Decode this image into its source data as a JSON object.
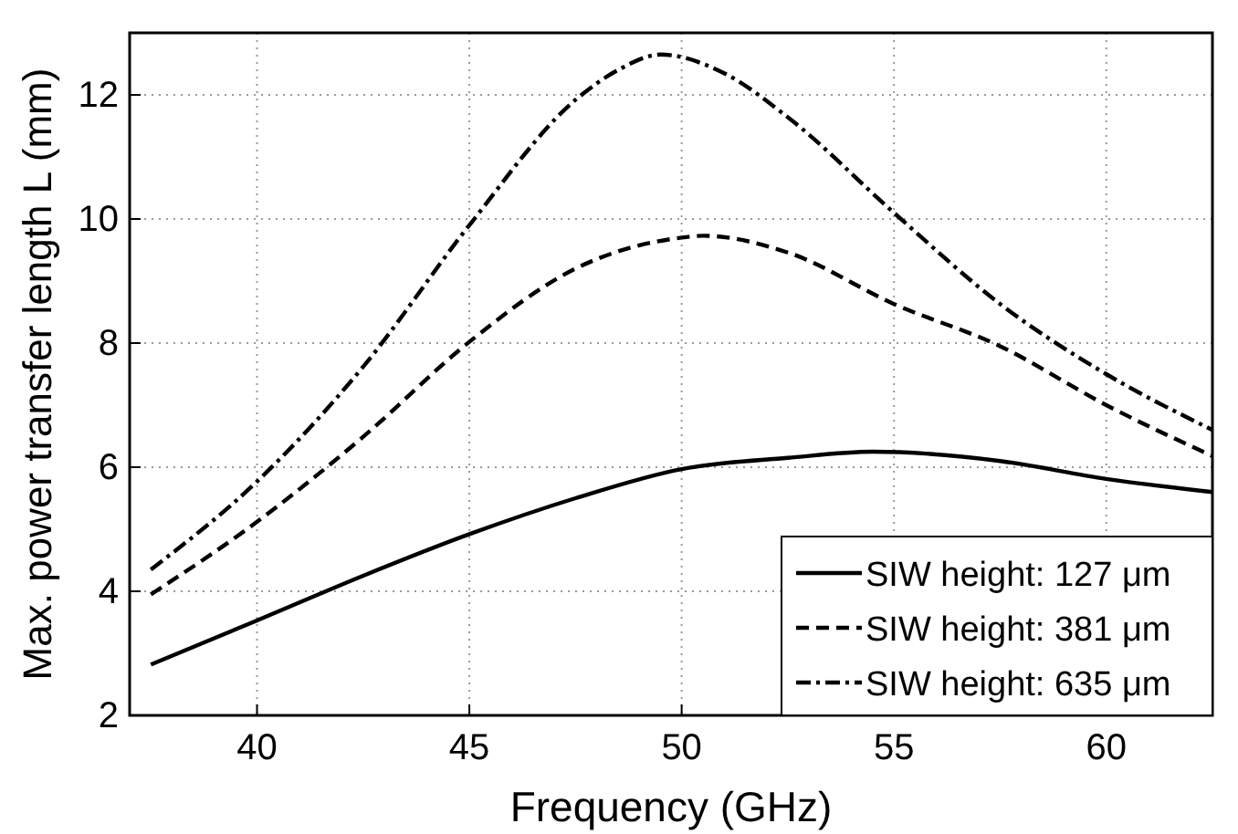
{
  "chart_data": {
    "type": "line",
    "xlabel": "Frequency (GHz)",
    "ylabel": "Max. power transfer length L (mm)",
    "xlim": [
      37,
      62.5
    ],
    "xticks": [
      40,
      45,
      50,
      55,
      60
    ],
    "ylim": [
      2,
      13
    ],
    "yticks": [
      2,
      4,
      6,
      8,
      10,
      12
    ],
    "grid": true,
    "legend": "bottom right",
    "series": [
      {
        "name": "SIW height: 127 μm",
        "color": "#000000",
        "line_style": "solid",
        "x": [
          37.5,
          40,
          42.5,
          45,
          47.5,
          50,
          52.5,
          54.5,
          57.5,
          60,
          62.5
        ],
        "values": [
          2.82,
          3.53,
          4.25,
          4.92,
          5.5,
          5.97,
          6.15,
          6.25,
          6.1,
          5.81,
          5.6
        ]
      },
      {
        "name": "SIW height: 381 μm",
        "color": "#000000",
        "line_style": "dashed",
        "x": [
          37.5,
          40,
          42.5,
          45,
          47.5,
          50,
          50.5,
          52.5,
          55,
          57.5,
          60,
          62.5
        ],
        "values": [
          3.95,
          5.12,
          6.49,
          8.02,
          9.2,
          9.7,
          9.73,
          9.46,
          8.63,
          7.95,
          7.0,
          6.18
        ]
      },
      {
        "name": "SIW height: 635 μm",
        "color": "#000000",
        "line_style": "dashdot",
        "x": [
          37.5,
          40,
          42.5,
          45,
          47.5,
          48.5,
          49.5,
          51,
          52.5,
          55,
          57.5,
          60,
          62.5
        ],
        "values": [
          4.35,
          5.77,
          7.62,
          9.9,
          11.92,
          12.4,
          12.65,
          12.35,
          11.64,
          10.1,
          8.63,
          7.5,
          6.6
        ]
      }
    ]
  }
}
